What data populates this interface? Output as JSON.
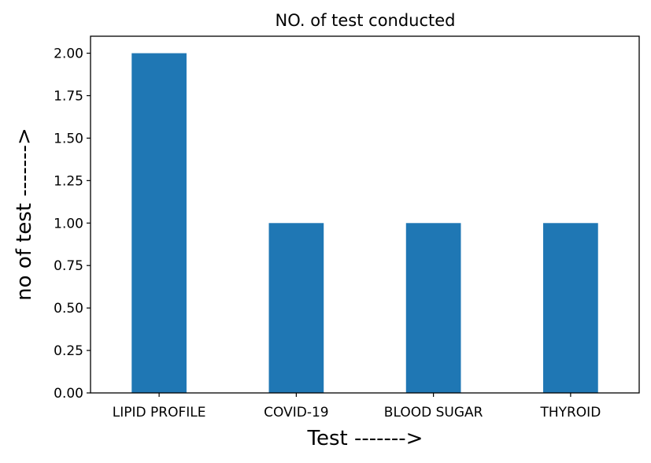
{
  "chart_data": {
    "type": "bar",
    "title": "NO. of test conducted",
    "xlabel": "Test ------->",
    "ylabel": "no of test ------->",
    "categories": [
      "LIPID PROFILE",
      "COVID-19",
      "BLOOD SUGAR",
      "THYROID"
    ],
    "values": [
      2,
      1,
      1,
      1
    ],
    "ylim": [
      0,
      2.1
    ],
    "yticks": [
      "0.00",
      "0.25",
      "0.50",
      "0.75",
      "1.00",
      "1.25",
      "1.50",
      "1.75",
      "2.00"
    ],
    "grid": false,
    "bar_color": "#1f77b4"
  }
}
